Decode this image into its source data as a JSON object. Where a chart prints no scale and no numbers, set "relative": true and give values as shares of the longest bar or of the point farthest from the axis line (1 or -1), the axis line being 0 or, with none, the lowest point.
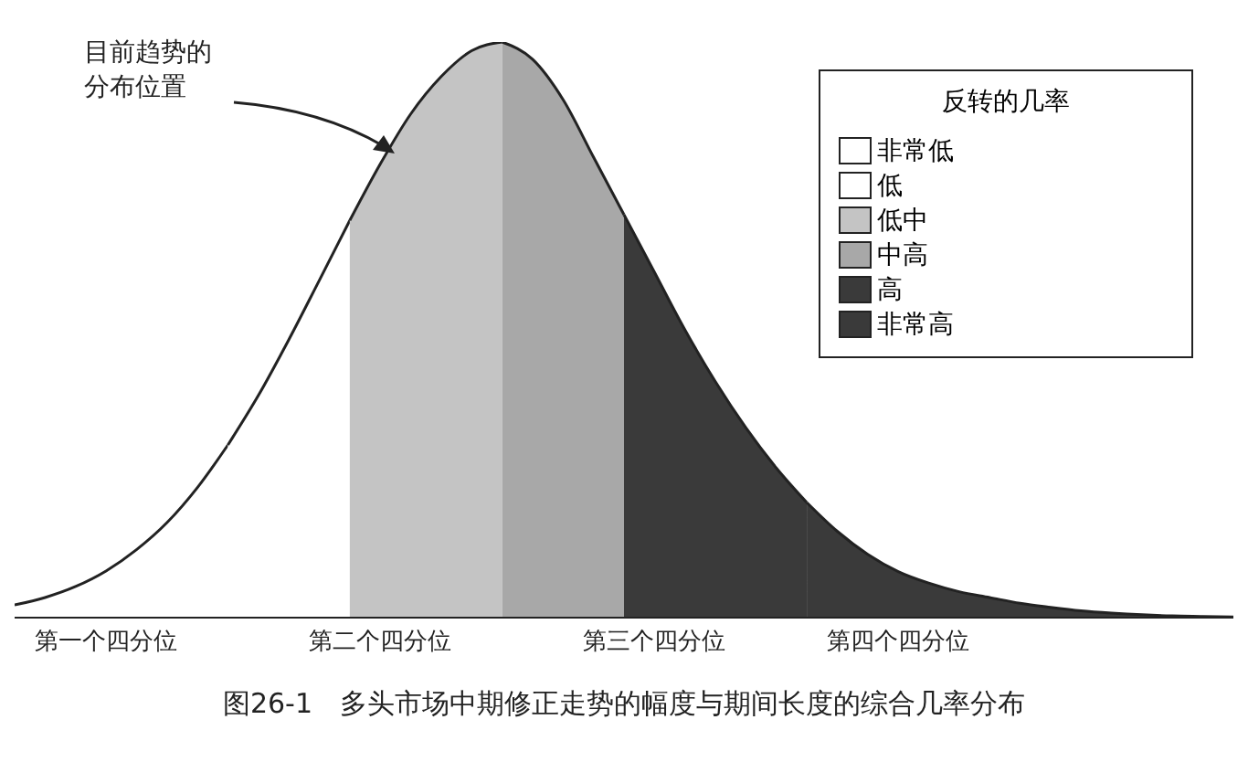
{
  "chart_data": {
    "type": "area",
    "relative": true,
    "title": "图26-1　多头市场中期修正走势的幅度与期间长度的综合几率分布",
    "legend_title": "反转的几率",
    "legend": "top right",
    "annotations": [
      "目前趋势的分布位置"
    ],
    "categories": [
      null,
      null,
      null,
      "第一个四分位",
      null,
      null,
      null,
      null,
      null,
      null,
      null,
      null,
      "第二个四分位",
      null,
      null,
      null,
      null,
      null,
      null,
      null,
      null,
      "第三个四分位",
      null,
      null,
      null,
      null,
      null,
      null,
      null,
      "第四个四分位",
      null,
      null,
      null,
      null,
      null,
      null,
      null,
      null,
      null,
      null,
      null
    ],
    "series": [
      {
        "name": "非常低",
        "color": "#ffffff",
        "values": [
          0.022,
          0.035,
          0.054,
          0.081,
          0.118,
          0.165,
          0.226,
          0.3,
          null,
          null,
          null,
          null,
          null,
          null,
          null,
          null,
          null,
          null,
          null,
          null,
          null,
          null,
          null,
          null,
          null,
          null,
          null,
          null,
          null,
          null,
          null,
          null,
          null,
          null,
          null,
          null,
          null,
          null,
          null,
          null,
          null
        ]
      },
      {
        "name": "低",
        "color": "#ffffff",
        "values": [
          null,
          null,
          null,
          null,
          null,
          null,
          null,
          0.3,
          0.386,
          0.483,
          0.586,
          0.69,
          null,
          null,
          null,
          null,
          null,
          null,
          null,
          null,
          null,
          null,
          null,
          null,
          null,
          null,
          null,
          null,
          null,
          null,
          null,
          null,
          null,
          null,
          null,
          null,
          null,
          null,
          null,
          null,
          null
        ]
      },
      {
        "name": "低中",
        "color": "#c4c4c4",
        "values": [
          null,
          null,
          null,
          null,
          null,
          null,
          null,
          null,
          null,
          null,
          null,
          0.69,
          0.788,
          0.875,
          0.94,
          0.985,
          1,
          null,
          null,
          null,
          null,
          null,
          null,
          null,
          null,
          null,
          null,
          null,
          null,
          null,
          null,
          null,
          null,
          null,
          null,
          null,
          null,
          null,
          null,
          null,
          null
        ]
      },
      {
        "name": "中高",
        "color": "#a8a8a8",
        "values": [
          null,
          null,
          null,
          null,
          null,
          null,
          null,
          null,
          null,
          null,
          null,
          null,
          null,
          null,
          null,
          null,
          1,
          0.97,
          0.9,
          0.8,
          0.7,
          null,
          null,
          null,
          null,
          null,
          null,
          null,
          null,
          null,
          null,
          null,
          null,
          null,
          null,
          null,
          null,
          null,
          null,
          null,
          null
        ]
      },
      {
        "name": "高",
        "color": "#3a3a3a",
        "values": [
          null,
          null,
          null,
          null,
          null,
          null,
          null,
          null,
          null,
          null,
          null,
          null,
          null,
          null,
          null,
          null,
          null,
          null,
          null,
          null,
          0.7,
          0.6,
          0.5,
          0.41,
          0.33,
          0.26,
          0.2,
          null,
          null,
          null,
          null,
          null,
          null,
          null,
          null,
          null,
          null,
          null,
          null,
          null,
          null
        ]
      },
      {
        "name": "非常高",
        "color": "#3a3a3a",
        "values": [
          null,
          null,
          null,
          null,
          null,
          null,
          null,
          null,
          null,
          null,
          null,
          null,
          null,
          null,
          null,
          null,
          null,
          null,
          null,
          null,
          null,
          null,
          null,
          null,
          null,
          null,
          0.2,
          0.15,
          0.11,
          0.08,
          0.06,
          0.045,
          0.035,
          0.025,
          0.018,
          0.012,
          0.008,
          0.005,
          0.003,
          0.002,
          0.001
        ]
      }
    ]
  }
}
